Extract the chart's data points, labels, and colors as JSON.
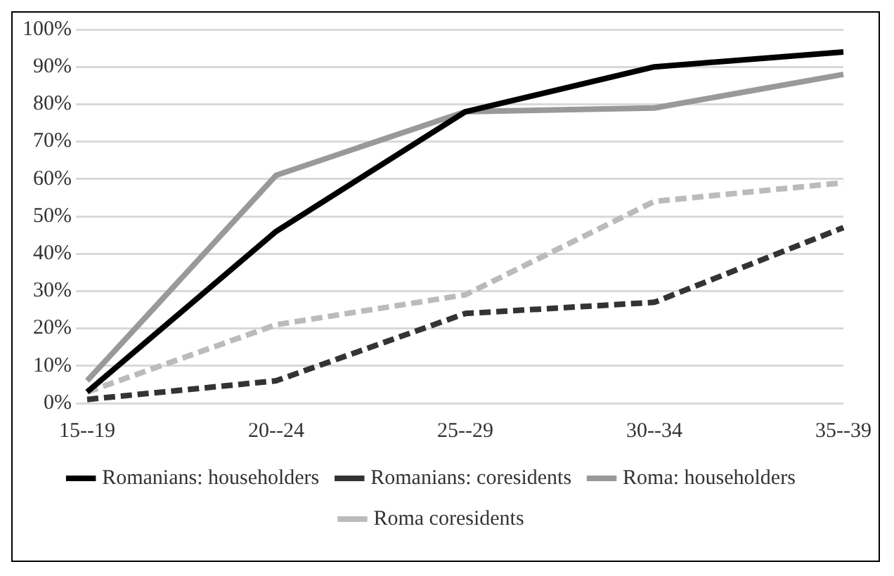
{
  "chart_data": {
    "type": "line",
    "categories": [
      "15--19",
      "20--24",
      "25--29",
      "30--34",
      "35--39"
    ],
    "series": [
      {
        "name": "Romanians: householders",
        "color": "#000000",
        "line_style": "solid",
        "values": [
          3,
          46,
          78,
          90,
          94
        ]
      },
      {
        "name": "Romanians: coresidents",
        "color": "#333333",
        "line_style": "dashed",
        "values": [
          1,
          6,
          24,
          27,
          47
        ]
      },
      {
        "name": "Roma: householders",
        "color": "#999999",
        "line_style": "solid",
        "values": [
          6,
          61,
          78,
          79,
          88
        ]
      },
      {
        "name": "Roma coresidents",
        "color": "#bbbbbb",
        "line_style": "dashed",
        "values": [
          3,
          21,
          29,
          54,
          59
        ]
      }
    ],
    "ylim": [
      0,
      100
    ],
    "yticks": [
      {
        "value": 0,
        "label": "0%"
      },
      {
        "value": 10,
        "label": "10%"
      },
      {
        "value": 20,
        "label": "20%"
      },
      {
        "value": 30,
        "label": "30%"
      },
      {
        "value": 40,
        "label": "40%"
      },
      {
        "value": 50,
        "label": "50%"
      },
      {
        "value": 60,
        "label": "60%"
      },
      {
        "value": 70,
        "label": "70%"
      },
      {
        "value": 80,
        "label": "80%"
      },
      {
        "value": 90,
        "label": "90%"
      },
      {
        "value": 100,
        "label": "100%"
      }
    ],
    "grid": "y",
    "legend": "bottom",
    "marker": "none"
  }
}
